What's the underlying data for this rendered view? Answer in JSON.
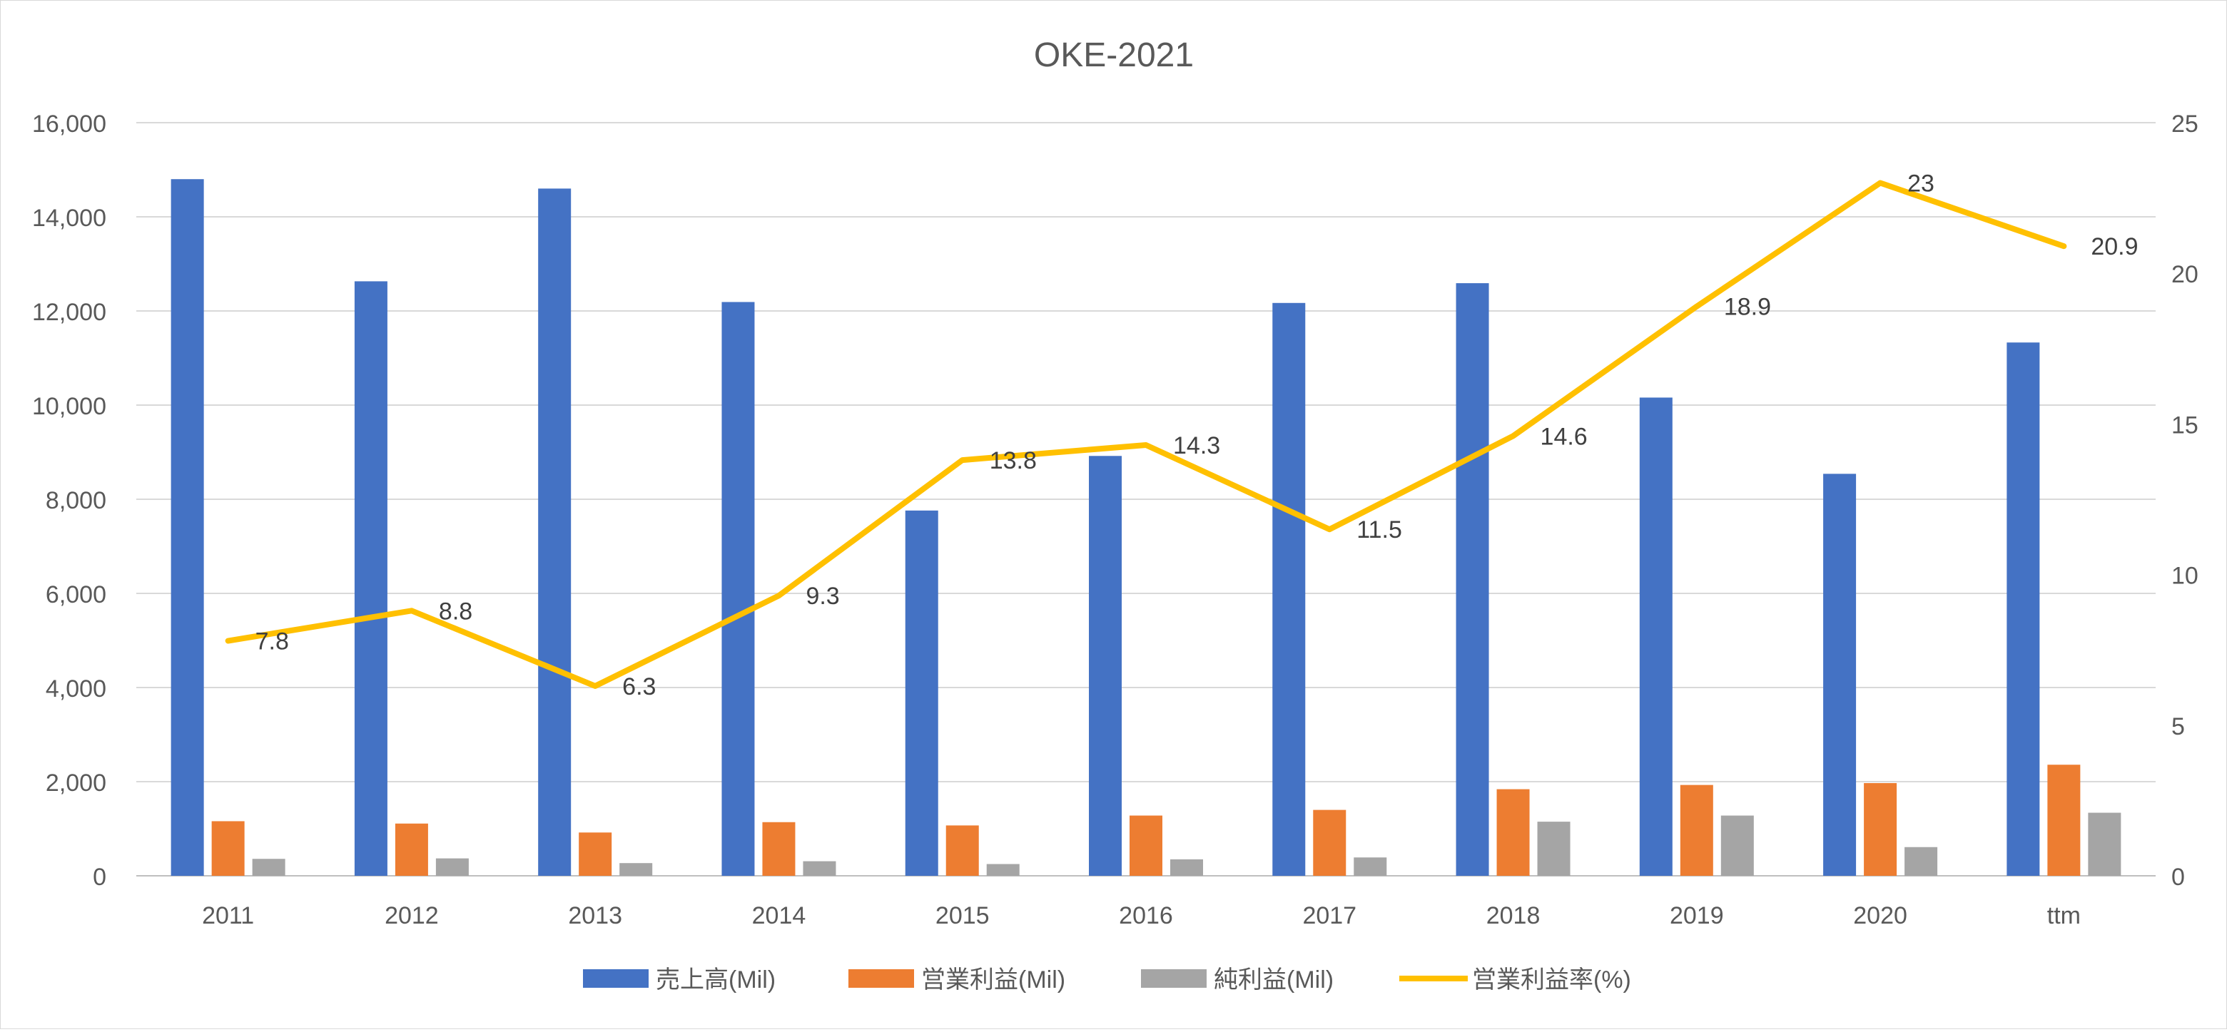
{
  "chart_data": {
    "type": "bar",
    "title": "OKE-2021",
    "categories": [
      "2011",
      "2012",
      "2013",
      "2014",
      "2015",
      "2016",
      "2017",
      "2018",
      "2019",
      "2020",
      "ttm"
    ],
    "series": [
      {
        "name": "売上高(Mil)",
        "type": "bar",
        "axis": "left",
        "color": "#4472C4",
        "values": [
          14800,
          12630,
          14600,
          12190,
          7760,
          8920,
          12170,
          12590,
          10160,
          8540,
          11330
        ]
      },
      {
        "name": "営業利益(Mil)",
        "type": "bar",
        "axis": "left",
        "color": "#ED7D31",
        "values": [
          1160,
          1110,
          920,
          1140,
          1070,
          1280,
          1400,
          1840,
          1930,
          1970,
          2360
        ]
      },
      {
        "name": "純利益(Mil)",
        "type": "bar",
        "axis": "left",
        "color": "#A5A5A5",
        "values": [
          360,
          370,
          270,
          310,
          250,
          350,
          390,
          1150,
          1280,
          610,
          1340
        ]
      },
      {
        "name": "営業利益率(%)",
        "type": "line",
        "axis": "right",
        "color": "#FFC000",
        "values": [
          7.8,
          8.8,
          6.3,
          9.3,
          13.8,
          14.3,
          11.5,
          14.6,
          18.9,
          23,
          20.9
        ],
        "labels": [
          "7.8",
          "8.8",
          "6.3",
          "9.3",
          "13.8",
          "14.3",
          "11.5",
          "14.6",
          "18.9",
          "23",
          "20.9"
        ]
      }
    ],
    "left_axis": {
      "ylim": [
        0,
        16000
      ],
      "ticks": [
        "0",
        "2,000",
        "4,000",
        "6,000",
        "8,000",
        "10,000",
        "12,000",
        "14,000",
        "16,000"
      ]
    },
    "right_axis": {
      "ylim": [
        0,
        25
      ],
      "ticks": [
        "0",
        "5",
        "10",
        "15",
        "20",
        "25"
      ]
    },
    "grid": true,
    "legend_position": "bottom"
  }
}
